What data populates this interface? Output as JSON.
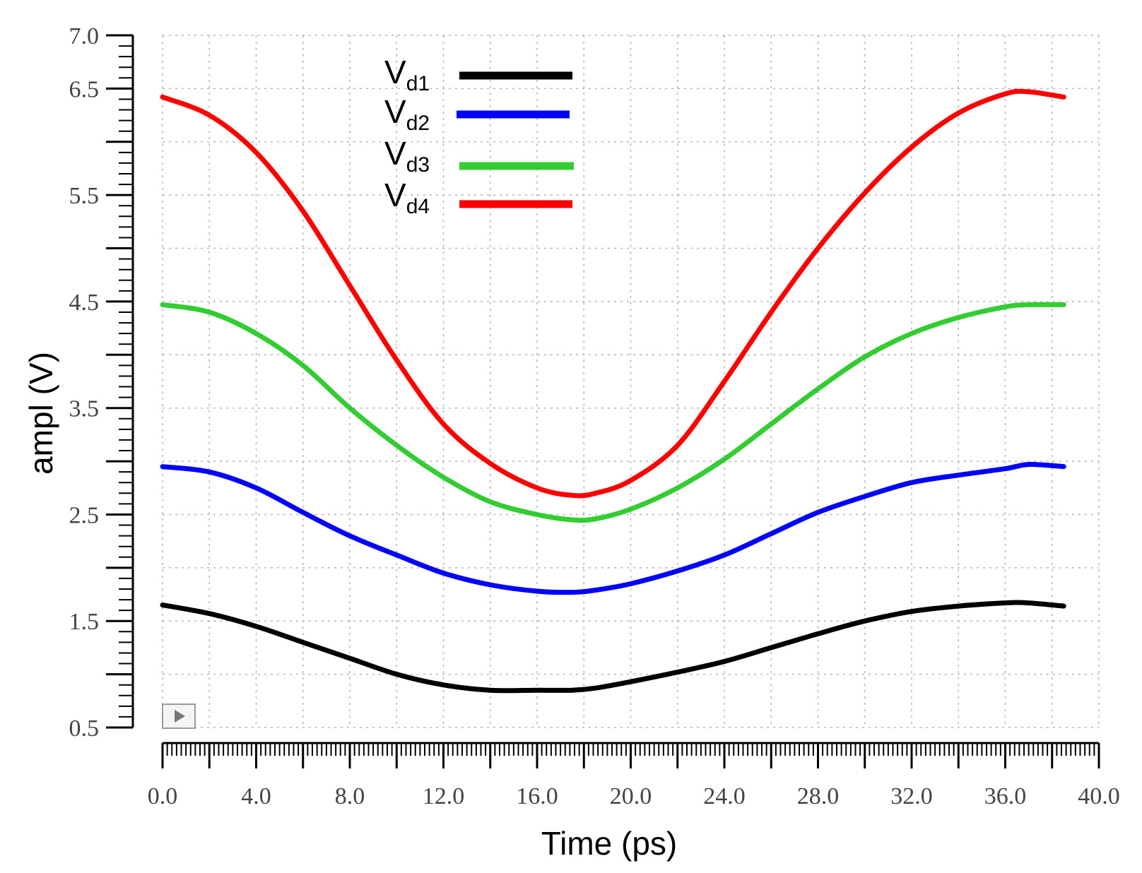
{
  "chart_data": {
    "type": "line",
    "title": "",
    "xlabel": "Time (ps)",
    "ylabel": "ampl (V)",
    "xlim": [
      0,
      40
    ],
    "ylim": [
      0.5,
      7.0
    ],
    "grid": true,
    "legend_position": "top-center",
    "x_tick_labels": [
      "0.0",
      "4.0",
      "8.0",
      "12.0",
      "16.0",
      "20.0",
      "24.0",
      "28.0",
      "32.0",
      "36.0",
      "40.0"
    ],
    "y_tick_labels": [
      "0.5",
      "1.5",
      "2.5",
      "3.5",
      "4.5",
      "5.5",
      "6.5",
      "7.0"
    ],
    "x": [
      0,
      2,
      4,
      6,
      8,
      10,
      12,
      14,
      16,
      17.5,
      18.5,
      20,
      22,
      24,
      26,
      28,
      30,
      32,
      34,
      36,
      37,
      38.5
    ],
    "series": [
      {
        "name": "V_d1",
        "label_main": "V",
        "label_sub": "d1",
        "color": "#000000",
        "values": [
          1.65,
          1.57,
          1.45,
          1.3,
          1.15,
          1.0,
          0.9,
          0.85,
          0.85,
          0.85,
          0.87,
          0.93,
          1.02,
          1.12,
          1.25,
          1.38,
          1.5,
          1.59,
          1.64,
          1.67,
          1.67,
          1.64
        ]
      },
      {
        "name": "V_d2",
        "label_main": "V",
        "label_sub": "d2",
        "color": "#0000ff",
        "values": [
          2.95,
          2.9,
          2.75,
          2.52,
          2.3,
          2.12,
          1.95,
          1.84,
          1.78,
          1.77,
          1.79,
          1.85,
          1.97,
          2.12,
          2.32,
          2.52,
          2.67,
          2.8,
          2.87,
          2.93,
          2.97,
          2.95
        ]
      },
      {
        "name": "V_d3",
        "label_main": "V",
        "label_sub": "d3",
        "color": "#33cc33",
        "values": [
          4.47,
          4.4,
          4.2,
          3.9,
          3.5,
          3.15,
          2.85,
          2.62,
          2.5,
          2.45,
          2.46,
          2.55,
          2.75,
          3.02,
          3.35,
          3.68,
          3.98,
          4.2,
          4.35,
          4.45,
          4.47,
          4.47
        ]
      },
      {
        "name": "V_d4",
        "label_main": "V",
        "label_sub": "d4",
        "color": "#ff0000",
        "values": [
          6.42,
          6.25,
          5.9,
          5.35,
          4.65,
          3.95,
          3.35,
          2.98,
          2.75,
          2.68,
          2.7,
          2.82,
          3.15,
          3.75,
          4.4,
          5.0,
          5.52,
          5.95,
          6.27,
          6.45,
          6.47,
          6.42
        ]
      }
    ]
  }
}
